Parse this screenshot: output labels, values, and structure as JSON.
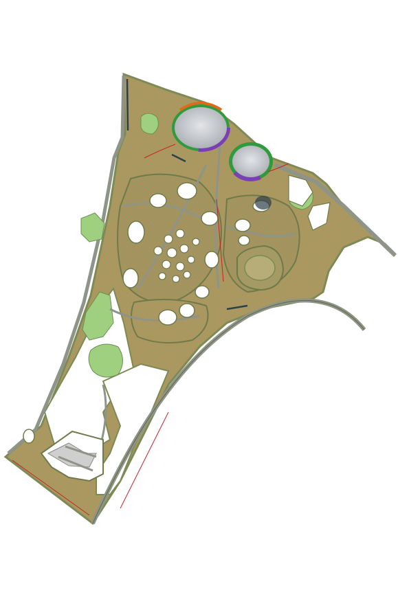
{
  "map": {
    "type": "masterplan-site-plan",
    "colors": {
      "background": "#ffffff",
      "boundary": "#7d8a55",
      "developed_land": "#a59a63",
      "plot_lines": "#c98a4a",
      "road": "#8f9488",
      "green_park": "#9fd07f",
      "white_plots": "#ffffff",
      "stadium_roof": "#c9cbcf",
      "stadium_ring_green": "#2f9b3c",
      "stadium_ring_purple": "#7a3fb4",
      "stadium_ring_orange": "#e06a1c",
      "red_lines": "#c8202a",
      "water_dark": "#2e3f4a"
    }
  }
}
